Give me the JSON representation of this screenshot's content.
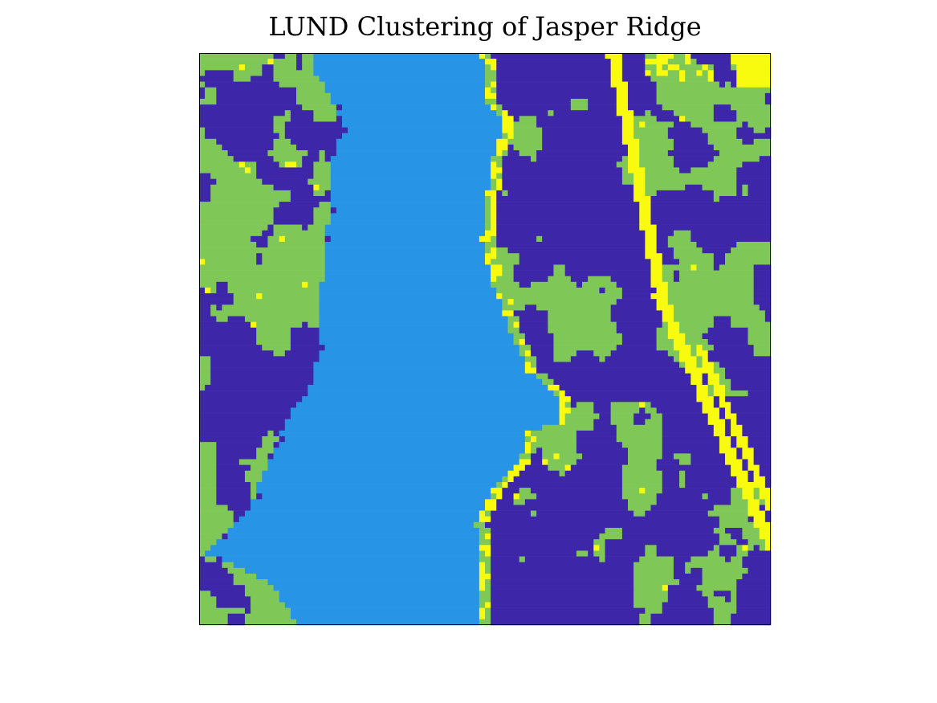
{
  "chart_data": {
    "type": "heatmap",
    "title": "LUND Clustering of Jasper Ridge",
    "xlabel": "",
    "ylabel": "",
    "axes_visible": false,
    "grid": false,
    "colorbar": false,
    "legend": "none",
    "size": [
      100,
      100
    ],
    "classes": [
      {
        "id": 1,
        "color": "#3E26A8"
      },
      {
        "id": 2,
        "color": "#2894E6"
      },
      {
        "id": 3,
        "color": "#7FC858"
      },
      {
        "id": 4,
        "color": "#F9FB0E"
      }
    ]
  }
}
